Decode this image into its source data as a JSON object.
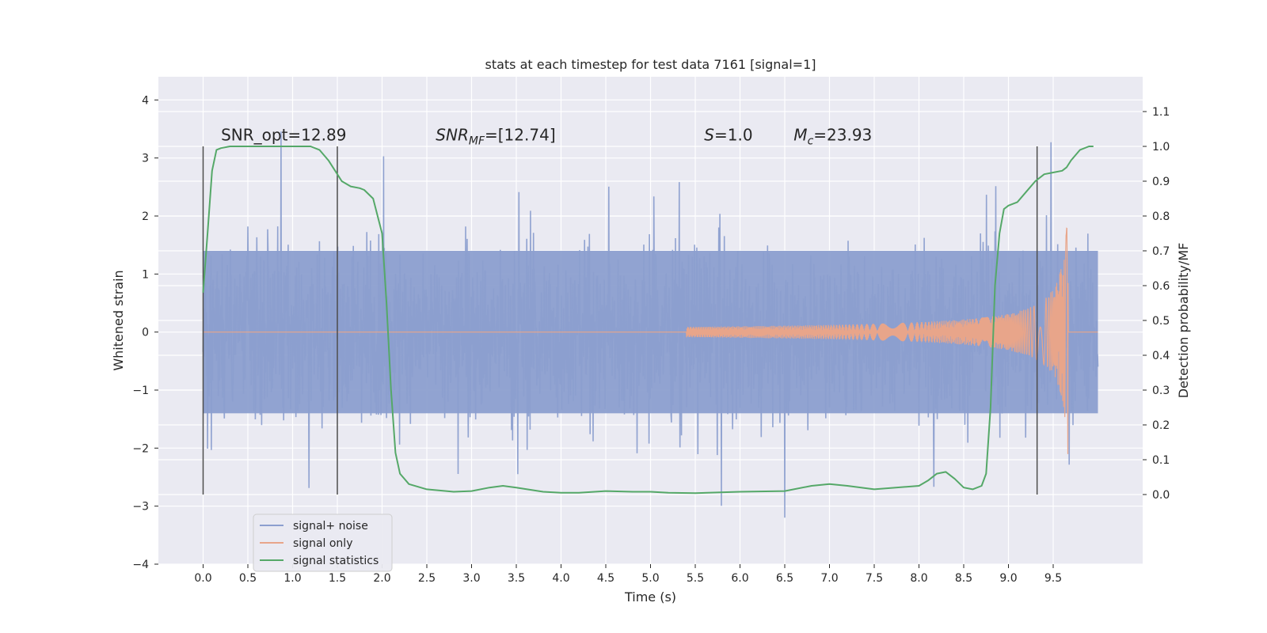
{
  "chart_data": {
    "type": "line",
    "title": "stats at each timestep for test data 7161 [signal=1]",
    "xlabel": "Time (s)",
    "ylabel": "Whitened strain",
    "y2label": "Detection probability/MF",
    "xlim": [
      -0.5,
      10.5
    ],
    "ylim": [
      -4,
      4.4
    ],
    "y2lim": [
      -0.2,
      1.2
    ],
    "xticks": [
      0.0,
      0.5,
      1.0,
      1.5,
      2.0,
      2.5,
      3.0,
      3.5,
      4.0,
      4.5,
      5.0,
      5.5,
      6.0,
      6.5,
      7.0,
      7.5,
      8.0,
      8.5,
      9.0,
      9.5
    ],
    "xtick_labels": [
      "0.0",
      "0.5",
      "1.0",
      "1.5",
      "2.0",
      "2.5",
      "3.0",
      "3.5",
      "4.0",
      "4.5",
      "5.0",
      "5.5",
      "6.0",
      "6.5",
      "7.0",
      "7.5",
      "8.0",
      "8.5",
      "9.0",
      "9.5"
    ],
    "yticks": [
      -4,
      -3,
      -2,
      -1,
      0,
      1,
      2,
      3,
      4
    ],
    "ytick_labels": [
      "−4",
      "−3",
      "−2",
      "−1",
      "0",
      "1",
      "2",
      "3",
      "4"
    ],
    "y2ticks": [
      0.0,
      0.1,
      0.2,
      0.3,
      0.4,
      0.5,
      0.6,
      0.7,
      0.8,
      0.9,
      1.0,
      1.1
    ],
    "y2tick_labels": [
      "0.0",
      "0.1",
      "0.2",
      "0.3",
      "0.4",
      "0.5",
      "0.6",
      "0.7",
      "0.8",
      "0.9",
      "1.0",
      "1.1"
    ],
    "grid": true,
    "legend_position": "lower-left",
    "series": [
      {
        "name": "signal+ noise",
        "axis": "left",
        "color": "#8c9fcf",
        "description_visible": "dense noise band",
        "x_range": [
          0.0,
          10.0
        ],
        "envelope_abs": 1.4
      },
      {
        "name": "signal only",
        "axis": "left",
        "color": "#e8a58a",
        "chirp_start": 5.4,
        "chirp_peak_time": 9.65,
        "chirp_peak_amp": 2.3,
        "x_range": [
          0.0,
          10.0
        ]
      },
      {
        "name": "signal statistics",
        "axis": "right",
        "color": "#55a868",
        "x": [
          0.0,
          0.05,
          0.1,
          0.15,
          0.2,
          0.3,
          0.5,
          0.8,
          1.0,
          1.2,
          1.3,
          1.4,
          1.5,
          1.55,
          1.65,
          1.75,
          1.8,
          1.9,
          2.0,
          2.05,
          2.1,
          2.15,
          2.2,
          2.3,
          2.5,
          2.8,
          3.0,
          3.2,
          3.35,
          3.5,
          3.8,
          4.0,
          4.2,
          4.5,
          4.8,
          5.0,
          5.2,
          5.5,
          6.0,
          6.5,
          6.8,
          7.0,
          7.2,
          7.5,
          8.0,
          8.1,
          8.2,
          8.3,
          8.4,
          8.5,
          8.6,
          8.7,
          8.75,
          8.8,
          8.85,
          8.9,
          8.95,
          9.0,
          9.1,
          9.2,
          9.3,
          9.4,
          9.5,
          9.6,
          9.65,
          9.7,
          9.8,
          9.9,
          9.95
        ],
        "y": [
          0.58,
          0.75,
          0.93,
          0.99,
          0.995,
          1.0,
          1.0,
          1.0,
          1.0,
          1.0,
          0.99,
          0.96,
          0.92,
          0.9,
          0.885,
          0.88,
          0.875,
          0.85,
          0.75,
          0.55,
          0.3,
          0.12,
          0.06,
          0.03,
          0.015,
          0.008,
          0.01,
          0.02,
          0.025,
          0.02,
          0.008,
          0.005,
          0.005,
          0.01,
          0.008,
          0.008,
          0.005,
          0.004,
          0.008,
          0.01,
          0.025,
          0.03,
          0.025,
          0.015,
          0.025,
          0.04,
          0.06,
          0.065,
          0.045,
          0.02,
          0.015,
          0.025,
          0.06,
          0.25,
          0.6,
          0.75,
          0.82,
          0.83,
          0.84,
          0.87,
          0.9,
          0.92,
          0.925,
          0.93,
          0.94,
          0.96,
          0.99,
          1.0,
          1.0
        ]
      }
    ],
    "vlines": [
      {
        "x": 0.0,
        "y_range": [
          -2.8,
          3.2
        ],
        "color": "#4c4c4c"
      },
      {
        "x": 1.5,
        "y_range": [
          -2.8,
          3.2
        ],
        "color": "#4c4c4c"
      },
      {
        "x": 9.32,
        "y_range": [
          -2.8,
          3.2
        ],
        "color": "#4c4c4c"
      }
    ],
    "annotations": [
      {
        "id": "snr-opt",
        "text": "SNR_opt=12.89",
        "x": 0.2,
        "y": 3.3
      },
      {
        "id": "snr-mf-main",
        "text": "SNR",
        "sub": "MF",
        "text_suffix": "=[12.74]",
        "x": 2.6,
        "y": 3.3,
        "italic": true
      },
      {
        "id": "s-val",
        "text": "S",
        "text_suffix": "=1.0",
        "x": 5.6,
        "y": 3.3,
        "italic": true
      },
      {
        "id": "mc-val",
        "text": "M",
        "sub": "c",
        "text_suffix": "=23.93",
        "x": 6.6,
        "y": 3.3,
        "italic": true
      }
    ]
  },
  "colors": {
    "plot_bg": "#eaeaf2",
    "grid": "#ffffff",
    "text": "#262626"
  }
}
